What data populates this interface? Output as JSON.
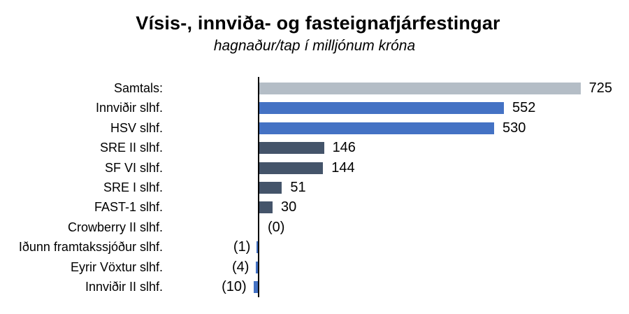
{
  "chart_data": {
    "type": "bar",
    "orientation": "horizontal",
    "title": "Vísis-, innviða- og fasteignafjárfestingar",
    "subtitle": "hagnaður/tap í milljónum króna",
    "categories": [
      "Samtals:",
      "Innviðir slhf.",
      "HSV slhf.",
      "SRE II slhf.",
      "SF VI slhf.",
      "SRE I slhf.",
      "FAST-1 slhf.",
      "Crowberry II slhf.",
      "Iðunn framtakssjóður slhf.",
      "Eyrir Vöxtur slhf.",
      "Innviðir II slhf."
    ],
    "values": [
      725,
      552,
      530,
      146,
      144,
      51,
      30,
      0,
      -1,
      -4,
      -10
    ],
    "value_labels": [
      "725",
      "552",
      "530",
      "146",
      "144",
      "51",
      "30",
      "(0)",
      "(1)",
      "(4)",
      "(10)"
    ],
    "bar_colors": [
      "#B4BDC6",
      "#4472C4",
      "#4472C4",
      "#44546A",
      "#44546A",
      "#44546A",
      "#44546A",
      "#4472C4",
      "#4472C4",
      "#4472C4",
      "#4472C4"
    ],
    "colors": {
      "total_bar": "#B4BDC6",
      "infrastructure_bar": "#4472C4",
      "real_estate_bar": "#44546A",
      "axis": "#000000",
      "text": "#000000"
    },
    "xlim": [
      -10,
      836
    ],
    "gridlines": false,
    "legend": null
  }
}
